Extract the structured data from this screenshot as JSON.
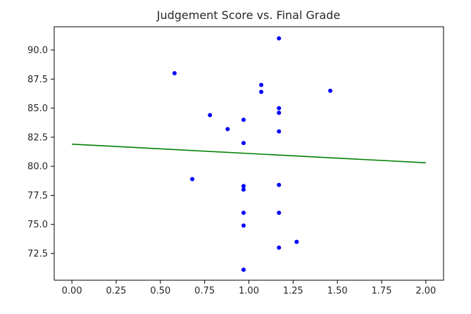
{
  "chart_data": {
    "type": "scatter",
    "title": "Judgement Score vs. Final Grade",
    "xlabel": "",
    "ylabel": "",
    "xlim": [
      -0.1,
      2.1
    ],
    "ylim": [
      70.2,
      92.0
    ],
    "x_ticks": [
      "0.00",
      "0.25",
      "0.50",
      "0.75",
      "1.00",
      "1.25",
      "1.50",
      "1.75",
      "2.00"
    ],
    "y_ticks": [
      "72.5",
      "75.0",
      "77.5",
      "80.0",
      "82.5",
      "85.0",
      "87.5",
      "90.0"
    ],
    "grid": false,
    "legend": "none",
    "point_color": "#0000ff",
    "line_color": "#008000",
    "points": [
      {
        "x": 0.58,
        "y": 88.0
      },
      {
        "x": 0.68,
        "y": 78.9
      },
      {
        "x": 0.78,
        "y": 84.4
      },
      {
        "x": 0.88,
        "y": 83.2
      },
      {
        "x": 0.97,
        "y": 84.0
      },
      {
        "x": 0.97,
        "y": 82.0
      },
      {
        "x": 0.97,
        "y": 78.3
      },
      {
        "x": 0.97,
        "y": 78.0
      },
      {
        "x": 0.97,
        "y": 76.0
      },
      {
        "x": 0.97,
        "y": 74.9
      },
      {
        "x": 0.97,
        "y": 71.1
      },
      {
        "x": 1.07,
        "y": 87.0
      },
      {
        "x": 1.07,
        "y": 86.4
      },
      {
        "x": 1.17,
        "y": 91.0
      },
      {
        "x": 1.17,
        "y": 85.0
      },
      {
        "x": 1.17,
        "y": 84.6
      },
      {
        "x": 1.17,
        "y": 83.0
      },
      {
        "x": 1.17,
        "y": 78.4
      },
      {
        "x": 1.17,
        "y": 76.0
      },
      {
        "x": 1.17,
        "y": 73.0
      },
      {
        "x": 1.27,
        "y": 73.5
      },
      {
        "x": 1.46,
        "y": 86.5
      }
    ],
    "fit_line": {
      "x": [
        0.0,
        2.0
      ],
      "y": [
        81.9,
        80.3
      ]
    }
  }
}
